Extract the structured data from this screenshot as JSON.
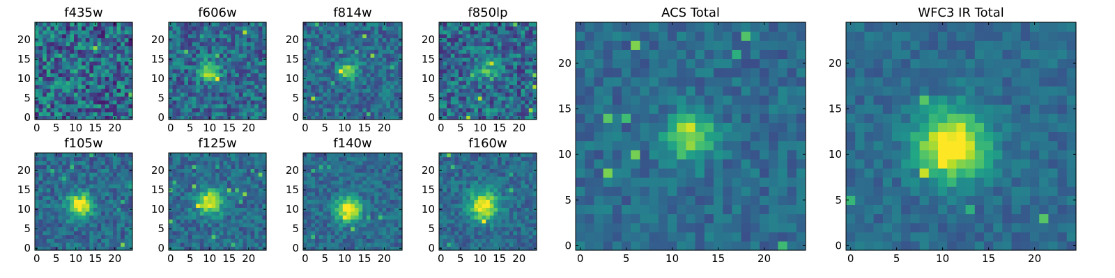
{
  "figure_title": "",
  "chart_data": [
    {
      "type": "heatmap",
      "name": "f435w",
      "title": "f435w",
      "x_range": [
        0,
        24
      ],
      "y_range": [
        0,
        24
      ],
      "grid": false,
      "x_ticks": [
        0,
        5,
        10,
        15,
        20
      ],
      "y_ticks": [
        0,
        5,
        10,
        15,
        20
      ],
      "peak": {
        "x": 9,
        "y": 12
      },
      "peak_strength": 0.05,
      "noise": 0.55,
      "spread": 3,
      "seed": 3,
      "colormap": "viridis"
    },
    {
      "type": "heatmap",
      "name": "f606w",
      "title": "f606w",
      "x_range": [
        0,
        24
      ],
      "y_range": [
        0,
        24
      ],
      "grid": false,
      "x_ticks": [
        0,
        5,
        10,
        15,
        20
      ],
      "y_ticks": [
        0,
        5,
        10,
        15,
        20
      ],
      "peak": {
        "x": 10,
        "y": 12
      },
      "peak_strength": 0.55,
      "noise": 0.4,
      "spread": 1.8,
      "seed": 7,
      "colormap": "viridis"
    },
    {
      "type": "heatmap",
      "name": "f814w",
      "title": "f814w",
      "x_range": [
        0,
        24
      ],
      "y_range": [
        0,
        24
      ],
      "grid": false,
      "x_ticks": [
        0,
        5,
        10,
        15,
        20
      ],
      "y_ticks": [
        0,
        5,
        10,
        15,
        20
      ],
      "peak": {
        "x": 11,
        "y": 12
      },
      "peak_strength": 0.55,
      "noise": 0.32,
      "spread": 1.5,
      "seed": 11,
      "colormap": "viridis"
    },
    {
      "type": "heatmap",
      "name": "f850lp",
      "title": "f850lp",
      "x_range": [
        0,
        24
      ],
      "y_range": [
        0,
        24
      ],
      "grid": false,
      "x_ticks": [
        0,
        5,
        10,
        15,
        20
      ],
      "y_ticks": [
        0,
        5,
        10,
        15,
        20
      ],
      "peak": {
        "x": 12,
        "y": 12
      },
      "peak_strength": 0.35,
      "noise": 0.45,
      "spread": 1.8,
      "seed": 19,
      "colormap": "viridis"
    },
    {
      "type": "heatmap",
      "name": "f105w",
      "title": "f105w",
      "x_range": [
        0,
        24
      ],
      "y_range": [
        0,
        24
      ],
      "grid": false,
      "x_ticks": [
        0,
        5,
        10,
        15,
        20
      ],
      "y_ticks": [
        0,
        5,
        10,
        15,
        20
      ],
      "peak": {
        "x": 11,
        "y": 11
      },
      "peak_strength": 0.7,
      "noise": 0.3,
      "spread": 2.2,
      "seed": 23,
      "colormap": "viridis"
    },
    {
      "type": "heatmap",
      "name": "f125w",
      "title": "f125w",
      "x_range": [
        0,
        24
      ],
      "y_range": [
        0,
        24
      ],
      "grid": false,
      "x_ticks": [
        0,
        5,
        10,
        15,
        20
      ],
      "y_ticks": [
        0,
        5,
        10,
        15,
        20
      ],
      "peak": {
        "x": 10,
        "y": 12
      },
      "peak_strength": 0.6,
      "noise": 0.28,
      "spread": 2.4,
      "seed": 29,
      "colormap": "viridis"
    },
    {
      "type": "heatmap",
      "name": "f140w",
      "title": "f140w",
      "x_range": [
        0,
        24
      ],
      "y_range": [
        0,
        24
      ],
      "grid": false,
      "x_ticks": [
        0,
        5,
        10,
        15,
        20
      ],
      "y_ticks": [
        0,
        5,
        10,
        15,
        20
      ],
      "peak": {
        "x": 11,
        "y": 10
      },
      "peak_strength": 0.7,
      "noise": 0.25,
      "spread": 2.2,
      "seed": 31,
      "colormap": "viridis"
    },
    {
      "type": "heatmap",
      "name": "f160w",
      "title": "f160w",
      "x_range": [
        0,
        24
      ],
      "y_range": [
        0,
        24
      ],
      "grid": false,
      "x_ticks": [
        0,
        5,
        10,
        15,
        20
      ],
      "y_ticks": [
        0,
        5,
        10,
        15,
        20
      ],
      "peak": {
        "x": 11,
        "y": 11
      },
      "peak_strength": 0.7,
      "noise": 0.25,
      "spread": 2.6,
      "seed": 37,
      "colormap": "viridis"
    },
    {
      "type": "heatmap",
      "name": "ACS Total",
      "title": "ACS Total",
      "x_range": [
        0,
        24
      ],
      "y_range": [
        0,
        24
      ],
      "grid": false,
      "x_ticks": [
        0,
        5,
        10,
        15,
        20
      ],
      "y_ticks": [
        0,
        5,
        10,
        15,
        20
      ],
      "peak": {
        "x": 12,
        "y": 12
      },
      "peak_strength": 0.55,
      "noise": 0.22,
      "spread": 1.8,
      "seed": 41,
      "colormap": "viridis"
    },
    {
      "type": "heatmap",
      "name": "WFC3 IR Total",
      "title": "WFC3 IR Total",
      "x_range": [
        0,
        24
      ],
      "y_range": [
        0,
        24
      ],
      "grid": false,
      "x_ticks": [
        0,
        5,
        10,
        15,
        20
      ],
      "y_ticks": [
        0,
        5,
        10,
        15,
        20
      ],
      "peak": {
        "x": 11,
        "y": 11
      },
      "peak_strength": 0.75,
      "noise": 0.18,
      "spread": 2.6,
      "seed": 43,
      "colormap": "viridis"
    }
  ]
}
